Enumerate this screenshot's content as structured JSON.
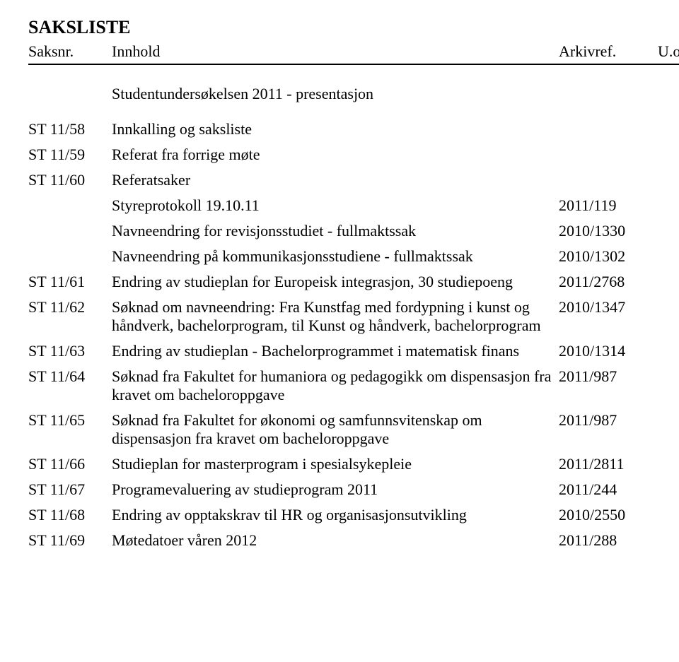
{
  "title": "SAKSLISTE",
  "headers": {
    "saksnr": "Saksnr.",
    "innhold": "Innhold",
    "arkivref": "Arkivref.",
    "uoff": "U.off."
  },
  "studentline": "Studentundersøkelsen 2011 - presentasjon",
  "rows": [
    {
      "saksnr": "ST 11/58",
      "innhold": "Innkalling og saksliste",
      "arkivref": ""
    },
    {
      "saksnr": "ST 11/59",
      "innhold": "Referat fra forrige møte",
      "arkivref": ""
    },
    {
      "saksnr": "ST 11/60",
      "innhold": "Referatsaker",
      "arkivref": ""
    },
    {
      "saksnr": "",
      "innhold": "Styreprotokoll 19.10.11",
      "arkivref": "2011/119"
    },
    {
      "saksnr": "",
      "innhold": "Navneendring for revisjonsstudiet - fullmaktssak",
      "arkivref": "2010/1330"
    },
    {
      "saksnr": "",
      "innhold": "Navneendring på kommunikasjonsstudiene - fullmaktssak",
      "arkivref": "2010/1302"
    },
    {
      "saksnr": "ST 11/61",
      "innhold": "Endring av studieplan for Europeisk integrasjon, 30 studiepoeng",
      "arkivref": "2011/2768"
    },
    {
      "saksnr": "ST 11/62",
      "innhold": "Søknad om navneendring: Fra Kunstfag med fordypning i kunst og håndverk, bachelorprogram, til Kunst og håndverk, bachelorprogram",
      "arkivref": "2010/1347"
    },
    {
      "saksnr": "ST 11/63",
      "innhold": "Endring av studieplan - Bachelorprogrammet i matematisk finans",
      "arkivref": "2010/1314"
    },
    {
      "saksnr": "ST 11/64",
      "innhold": "Søknad fra Fakultet for humaniora og pedagogikk om dispensasjon fra kravet om bacheloroppgave",
      "arkivref": "2011/987"
    },
    {
      "saksnr": "ST 11/65",
      "innhold": "Søknad fra Fakultet for økonomi og samfunnsvitenskap om dispensasjon fra kravet om bacheloroppgave",
      "arkivref": "2011/987"
    },
    {
      "saksnr": "ST 11/66",
      "innhold": "Studieplan for masterprogram i spesialsykepleie",
      "arkivref": "2011/2811"
    },
    {
      "saksnr": "ST 11/67",
      "innhold": "Programevaluering av studieprogram 2011",
      "arkivref": "2011/244"
    },
    {
      "saksnr": "ST 11/68",
      "innhold": "Endring av opptakskrav til HR og organisasjonsutvikling",
      "arkivref": "2010/2550"
    },
    {
      "saksnr": "ST 11/69",
      "innhold": "Møtedatoer våren 2012",
      "arkivref": "2011/288"
    }
  ]
}
